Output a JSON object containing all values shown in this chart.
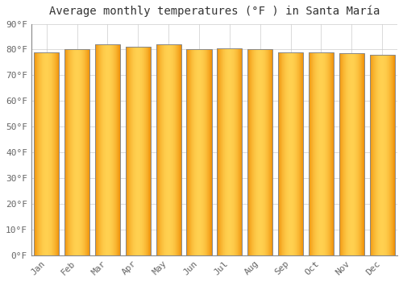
{
  "title": "Average monthly temperatures (°F ) in Santa María",
  "months": [
    "Jan",
    "Feb",
    "Mar",
    "Apr",
    "May",
    "Jun",
    "Jul",
    "Aug",
    "Sep",
    "Oct",
    "Nov",
    "Dec"
  ],
  "values": [
    79,
    80,
    82,
    81,
    82,
    80,
    80.5,
    80,
    79,
    79,
    78.5,
    78
  ],
  "ylim": [
    0,
    90
  ],
  "yticks": [
    0,
    10,
    20,
    30,
    40,
    50,
    60,
    70,
    80,
    90
  ],
  "bar_color_center": "#FFD050",
  "bar_color_edge": "#F0920A",
  "bar_outline_color": "#888888",
  "background_color": "#FFFFFF",
  "grid_color": "#CCCCCC",
  "title_fontsize": 10,
  "tick_fontsize": 8,
  "bar_width": 0.82
}
